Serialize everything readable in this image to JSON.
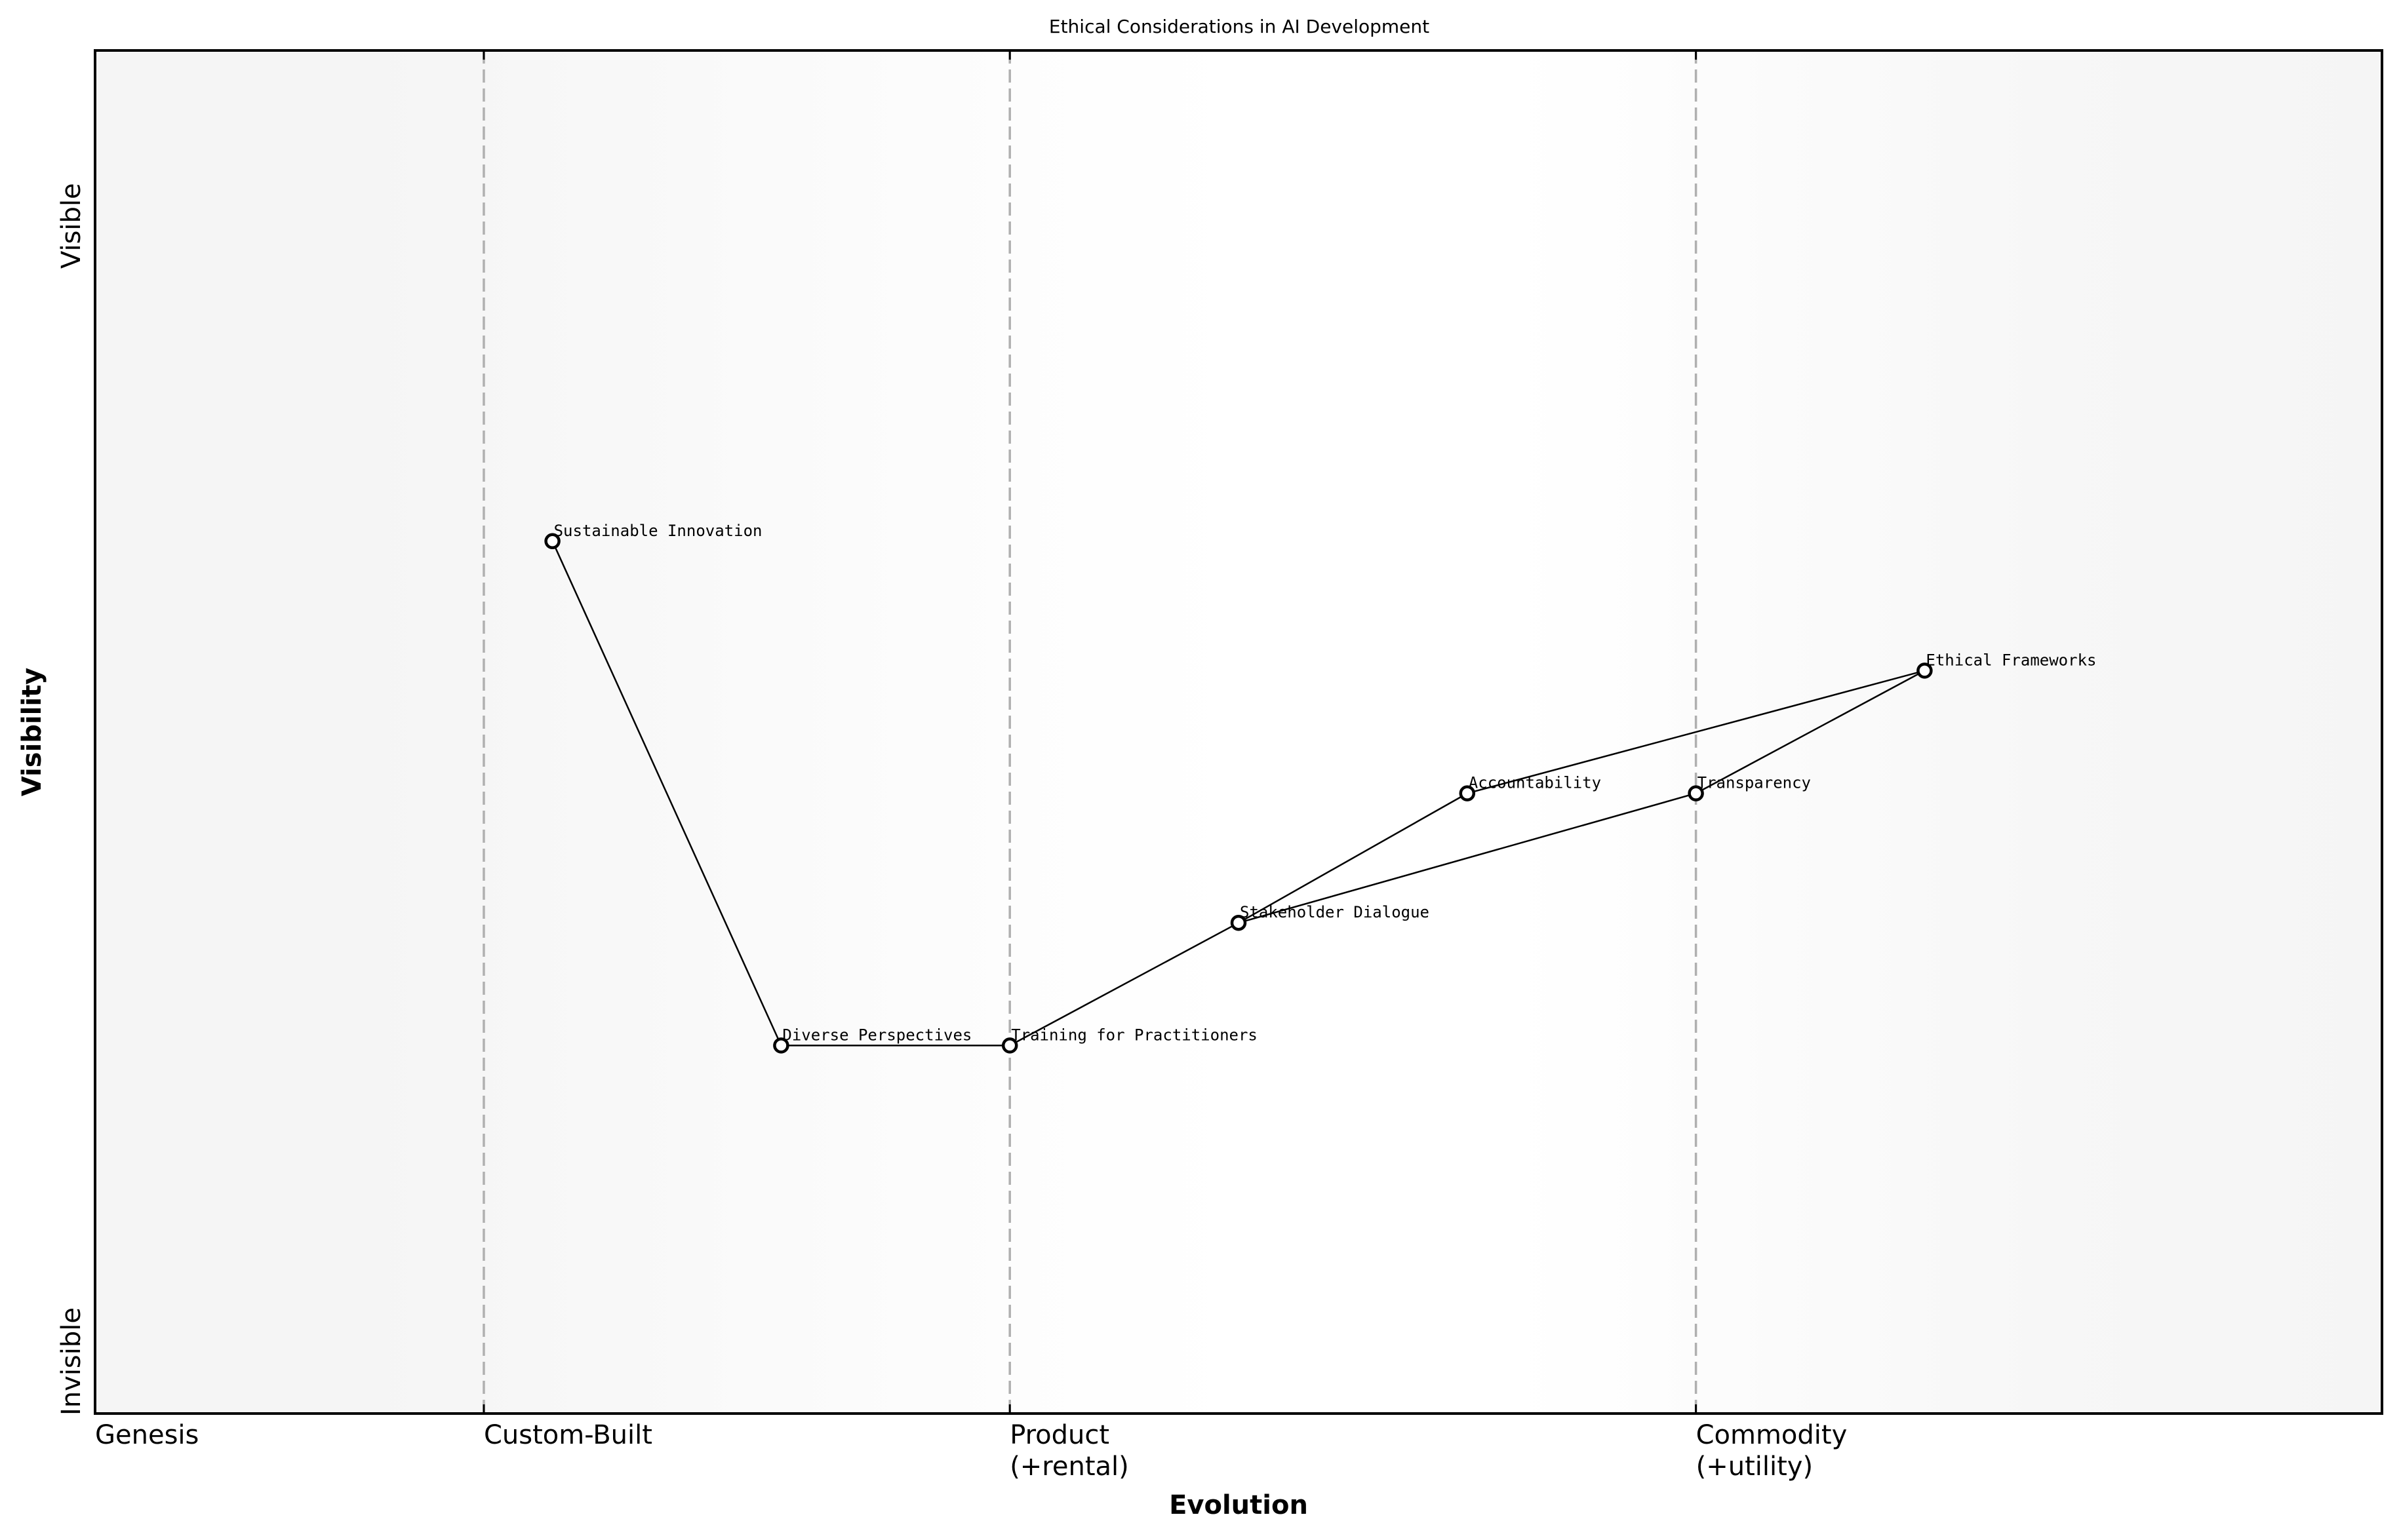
{
  "chart_data": {
    "type": "scatter",
    "subtype": "wardley-map",
    "title": "Ethical Considerations in AI Development",
    "xlabel": "Evolution",
    "ylabel": "Visibility",
    "xlim": [
      0,
      1
    ],
    "ylim": [
      0,
      1
    ],
    "grid": false,
    "legend": null,
    "y_extremes": {
      "top": "Visible",
      "bottom": "Invisible"
    },
    "stages": [
      {
        "label": "Genesis",
        "line2": "",
        "x": 0.0,
        "dashed_line": false
      },
      {
        "label": "Custom-Built",
        "line2": "",
        "x": 0.17,
        "dashed_line": true
      },
      {
        "label": "Product",
        "line2": "(+rental)",
        "x": 0.4,
        "dashed_line": true
      },
      {
        "label": "Commodity",
        "line2": "(+utility)",
        "x": 0.7,
        "dashed_line": true
      }
    ],
    "nodes": [
      {
        "id": "sustainable",
        "label": "Sustainable Innovation",
        "x": 0.2,
        "y": 0.64
      },
      {
        "id": "diverse",
        "label": "Diverse Perspectives",
        "x": 0.3,
        "y": 0.27
      },
      {
        "id": "training",
        "label": "Training for Practitioners",
        "x": 0.4,
        "y": 0.27
      },
      {
        "id": "stakeholder",
        "label": "Stakeholder Dialogue",
        "x": 0.5,
        "y": 0.36
      },
      {
        "id": "accountability",
        "label": "Accountability",
        "x": 0.6,
        "y": 0.455
      },
      {
        "id": "transparency",
        "label": "Transparency",
        "x": 0.7,
        "y": 0.455
      },
      {
        "id": "ethical",
        "label": "Ethical Frameworks",
        "x": 0.8,
        "y": 0.545
      }
    ],
    "edges": [
      [
        "sustainable",
        "diverse"
      ],
      [
        "diverse",
        "training"
      ],
      [
        "training",
        "stakeholder"
      ],
      [
        "stakeholder",
        "accountability"
      ],
      [
        "stakeholder",
        "transparency"
      ],
      [
        "accountability",
        "ethical"
      ],
      [
        "transparency",
        "ethical"
      ]
    ]
  },
  "colors": {
    "background_edge": "#f5f5f5",
    "background_center": "#ffffff",
    "stage_line": "#b0b0b0",
    "ink": "#000000"
  }
}
